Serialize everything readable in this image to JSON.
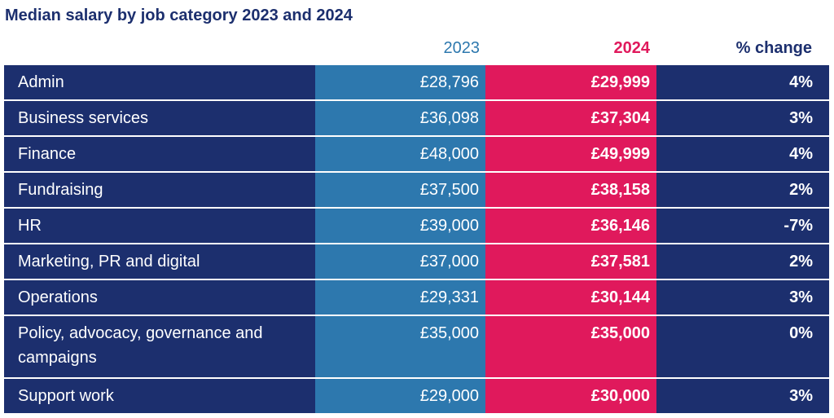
{
  "chart_data": {
    "type": "table",
    "title": "Median salary by job category 2023 and 2024",
    "columns": [
      "",
      "2023",
      "2024",
      "% change"
    ],
    "colors": {
      "label": "#1c2f6e",
      "2023": "#2d78ae",
      "2024": "#e0195c",
      "change": "#1c2f6e",
      "title": "#1c2f6e"
    },
    "rows": [
      {
        "category": "Admin",
        "y2023": "£28,796",
        "y2024": "£29,999",
        "change": "4%"
      },
      {
        "category": "Business services",
        "y2023": "£36,098",
        "y2024": "£37,304",
        "change": "3%"
      },
      {
        "category": "Finance",
        "y2023": "£48,000",
        "y2024": "£49,999",
        "change": "4%"
      },
      {
        "category": "Fundraising",
        "y2023": "£37,500",
        "y2024": "£38,158",
        "change": "2%"
      },
      {
        "category": "HR",
        "y2023": "£39,000",
        "y2024": "£36,146",
        "change": "-7%"
      },
      {
        "category": "Marketing, PR and digital",
        "y2023": "£37,000",
        "y2024": "£37,581",
        "change": "2%"
      },
      {
        "category": "Operations",
        "y2023": "£29,331",
        "y2024": "£30,144",
        "change": "3%"
      },
      {
        "category": "Policy, advocacy, governance and campaigns",
        "y2023": "£35,000",
        "y2024": "£35,000",
        "change": "0%"
      },
      {
        "category": "Support work",
        "y2023": "£29,000",
        "y2024": "£30,000",
        "change": "3%"
      }
    ]
  }
}
